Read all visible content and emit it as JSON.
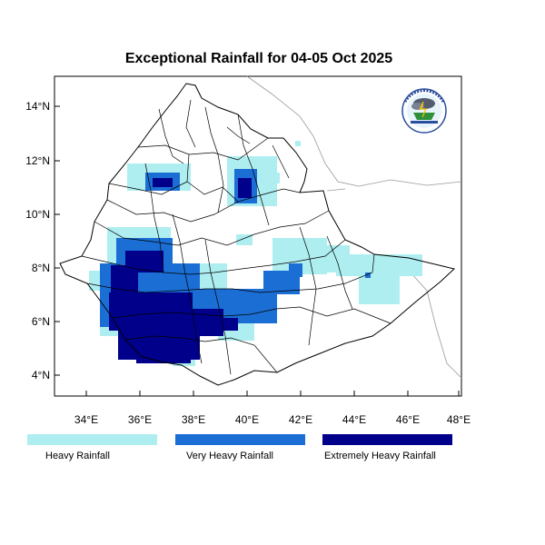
{
  "title": "Exceptional Rainfall for 04-05 Oct 2025",
  "axes": {
    "y_ticks": [
      "4°N",
      "6°N",
      "8°N",
      "10°N",
      "12°N",
      "14°N"
    ],
    "x_ticks": [
      "34°E",
      "36°E",
      "38°E",
      "40°E",
      "42°E",
      "44°E",
      "46°E",
      "48°E"
    ]
  },
  "legend": {
    "items": [
      {
        "label": "Heavy Rainfall",
        "color": "#aeeef0"
      },
      {
        "label": "Very Heavy Rainfall",
        "color": "#1b6ed4"
      },
      {
        "label": "Extremely Heavy Rainfall",
        "color": "#00008b"
      }
    ]
  },
  "logo": {
    "name": "Ethiopian Meteorology Institute"
  },
  "colors": {
    "heavy": "#aeeef0",
    "very_heavy": "#1b6ed4",
    "extreme": "#00008b"
  }
}
